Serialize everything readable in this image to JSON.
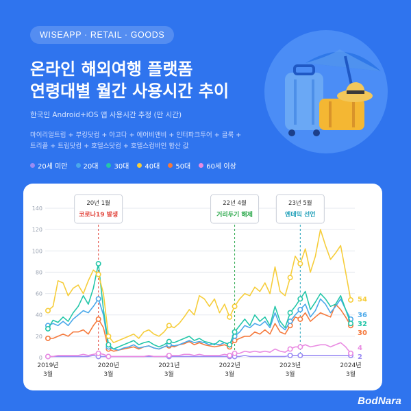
{
  "header": {
    "badge": "WISEAPP · RETAIL · GOODS",
    "title_line1": "온라인 해외여행 플랫폼",
    "title_line2": "연령대별 월간 사용시간 추이",
    "subtitle": "한국인 Android+iOS 앱 사용시간 추정 (만 시간)",
    "note_line1": "마이리얼트립 + 부킹닷컴 + 아고다 + 에어비앤비 + 인터파크투어 + 클룩 +",
    "note_line2": "트리플 + 트립닷컴 + 호텔스닷컴 + 호텔스컴바인 합산 값"
  },
  "brand": "BodNara",
  "hero_icon": "suitcase-umbrella-illustration",
  "chart_data": {
    "type": "line",
    "x": [
      "2019-03",
      "2019-04",
      "2019-05",
      "2019-06",
      "2019-07",
      "2019-08",
      "2019-09",
      "2019-10",
      "2019-11",
      "2019-12",
      "2020-01",
      "2020-02",
      "2020-03",
      "2020-04",
      "2020-05",
      "2020-06",
      "2020-07",
      "2020-08",
      "2020-09",
      "2020-10",
      "2020-11",
      "2020-12",
      "2021-01",
      "2021-02",
      "2021-03",
      "2021-04",
      "2021-05",
      "2021-06",
      "2021-07",
      "2021-08",
      "2021-09",
      "2021-10",
      "2021-11",
      "2021-12",
      "2022-01",
      "2022-02",
      "2022-03",
      "2022-04",
      "2022-05",
      "2022-06",
      "2022-07",
      "2022-08",
      "2022-09",
      "2022-10",
      "2022-11",
      "2022-12",
      "2023-01",
      "2023-02",
      "2023-03",
      "2023-04",
      "2023-05",
      "2023-06",
      "2023-07",
      "2023-08",
      "2023-09",
      "2023-10",
      "2023-11",
      "2023-12",
      "2024-01",
      "2024-02",
      "2024-03"
    ],
    "series": [
      {
        "name": "20세 미만",
        "color": "#9b8cf3",
        "values": [
          1,
          1,
          1,
          1,
          1,
          1,
          1,
          1,
          1,
          2,
          1,
          1,
          1,
          1,
          1,
          1,
          1,
          1,
          1,
          1,
          1,
          1,
          1,
          1,
          1,
          1,
          1,
          1,
          1,
          1,
          1,
          1,
          1,
          1,
          1,
          1,
          1,
          1,
          1,
          2,
          1,
          1,
          1,
          1,
          1,
          1,
          1,
          1,
          2,
          2,
          2,
          2,
          2,
          2,
          2,
          2,
          2,
          2,
          2,
          2,
          2
        ]
      },
      {
        "name": "20대",
        "color": "#4aa8ea",
        "values": [
          30,
          32,
          30,
          34,
          30,
          36,
          40,
          44,
          42,
          48,
          55,
          40,
          10,
          8,
          7,
          9,
          10,
          12,
          9,
          10,
          11,
          9,
          8,
          10,
          12,
          11,
          12,
          14,
          16,
          14,
          15,
          14,
          12,
          13,
          12,
          14,
          12,
          20,
          24,
          30,
          28,
          32,
          30,
          34,
          28,
          42,
          30,
          26,
          34,
          40,
          45,
          50,
          38,
          44,
          55,
          50,
          42,
          48,
          55,
          45,
          36
        ]
      },
      {
        "name": "30대",
        "color": "#24c6a9",
        "values": [
          27,
          35,
          33,
          38,
          34,
          42,
          48,
          58,
          50,
          65,
          88,
          45,
          12,
          8,
          10,
          12,
          14,
          16,
          12,
          14,
          15,
          12,
          10,
          12,
          15,
          14,
          16,
          18,
          20,
          16,
          18,
          15,
          14,
          12,
          16,
          14,
          12,
          24,
          30,
          36,
          30,
          40,
          34,
          38,
          30,
          48,
          34,
          28,
          42,
          48,
          55,
          62,
          45,
          52,
          60,
          55,
          48,
          50,
          58,
          45,
          32
        ]
      },
      {
        "name": "40대",
        "color": "#f6cd3a",
        "values": [
          44,
          48,
          72,
          70,
          58,
          65,
          68,
          60,
          72,
          82,
          78,
          60,
          20,
          14,
          16,
          18,
          20,
          22,
          18,
          24,
          26,
          22,
          20,
          24,
          30,
          28,
          32,
          38,
          45,
          40,
          58,
          55,
          48,
          55,
          42,
          50,
          38,
          48,
          55,
          60,
          58,
          66,
          62,
          70,
          60,
          85,
          62,
          58,
          75,
          95,
          88,
          102,
          80,
          95,
          120,
          105,
          92,
          98,
          105,
          80,
          54
        ]
      },
      {
        "name": "50대",
        "color": "#f5793c",
        "values": [
          18,
          18,
          20,
          22,
          20,
          24,
          24,
          26,
          22,
          30,
          36,
          28,
          8,
          6,
          7,
          8,
          9,
          10,
          8,
          10,
          11,
          9,
          8,
          10,
          11,
          10,
          12,
          13,
          15,
          12,
          14,
          12,
          11,
          10,
          11,
          12,
          10,
          16,
          18,
          20,
          20,
          24,
          22,
          26,
          22,
          32,
          24,
          22,
          30,
          38,
          36,
          42,
          34,
          38,
          42,
          40,
          38,
          50,
          45,
          38,
          30
        ]
      },
      {
        "name": "60세 이상",
        "color": "#e98be2",
        "values": [
          1,
          1,
          2,
          2,
          2,
          2,
          2,
          3,
          2,
          3,
          4,
          3,
          1,
          1,
          1,
          1,
          1,
          1,
          1,
          1,
          2,
          1,
          1,
          1,
          2,
          2,
          2,
          3,
          3,
          2,
          3,
          2,
          2,
          2,
          2,
          3,
          2,
          4,
          4,
          6,
          5,
          6,
          5,
          6,
          5,
          8,
          6,
          5,
          8,
          10,
          10,
          12,
          10,
          11,
          12,
          12,
          10,
          12,
          14,
          10,
          4
        ]
      }
    ],
    "start_labels": [
      1,
      30,
      27,
      44,
      18,
      1
    ],
    "end_labels": [
      2,
      36,
      32,
      54,
      30,
      4
    ],
    "y_ticks": [
      0,
      20,
      40,
      60,
      80,
      100,
      120,
      140
    ],
    "ylim": [
      0,
      140
    ],
    "x_tick_labels": [
      {
        "year": "2019년",
        "month": "3월"
      },
      {
        "year": "2020년",
        "month": "3월"
      },
      {
        "year": "2021년",
        "month": "3월"
      },
      {
        "year": "2022년",
        "month": "3월"
      },
      {
        "year": "2023년",
        "month": "3월"
      },
      {
        "year": "2024년",
        "month": "3월"
      }
    ],
    "annotations": [
      {
        "date": "20년 1월",
        "text": "코로나19 발생",
        "color": "#e2463d",
        "x_index": 10
      },
      {
        "date": "22년 4월",
        "text": "거리두기 해제",
        "color": "#2aa84a",
        "x_index": 37
      },
      {
        "date": "23년 5월",
        "text": "엔데믹 선언",
        "color": "#1f9fb8",
        "x_index": 50
      }
    ],
    "grid": true
  }
}
